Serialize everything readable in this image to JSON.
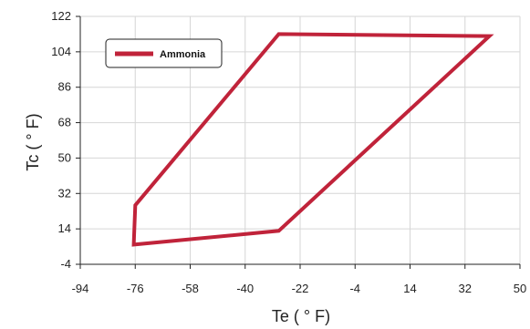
{
  "chart_data": {
    "type": "line",
    "xlabel": "Te ( ° F)",
    "ylabel": "Tc ( ° F)",
    "x_ticks": [
      "-94",
      "-76",
      "-58",
      "-40",
      "-22",
      "-4",
      "14",
      "32",
      "50"
    ],
    "y_ticks": [
      "-4",
      "14",
      "32",
      "50",
      "68",
      "86",
      "104",
      "122"
    ],
    "xlim": [
      -94,
      50
    ],
    "ylim": [
      -4,
      122
    ],
    "grid": true,
    "legend_position": "top-left",
    "series": [
      {
        "name": "Ammonia",
        "color": "#c0233a",
        "closed": true,
        "points": [
          {
            "x": -76,
            "y": 26
          },
          {
            "x": -29,
            "y": 113
          },
          {
            "x": 40,
            "y": 112
          },
          {
            "x": -29,
            "y": 13
          },
          {
            "x": -76.5,
            "y": 6
          }
        ]
      }
    ]
  }
}
